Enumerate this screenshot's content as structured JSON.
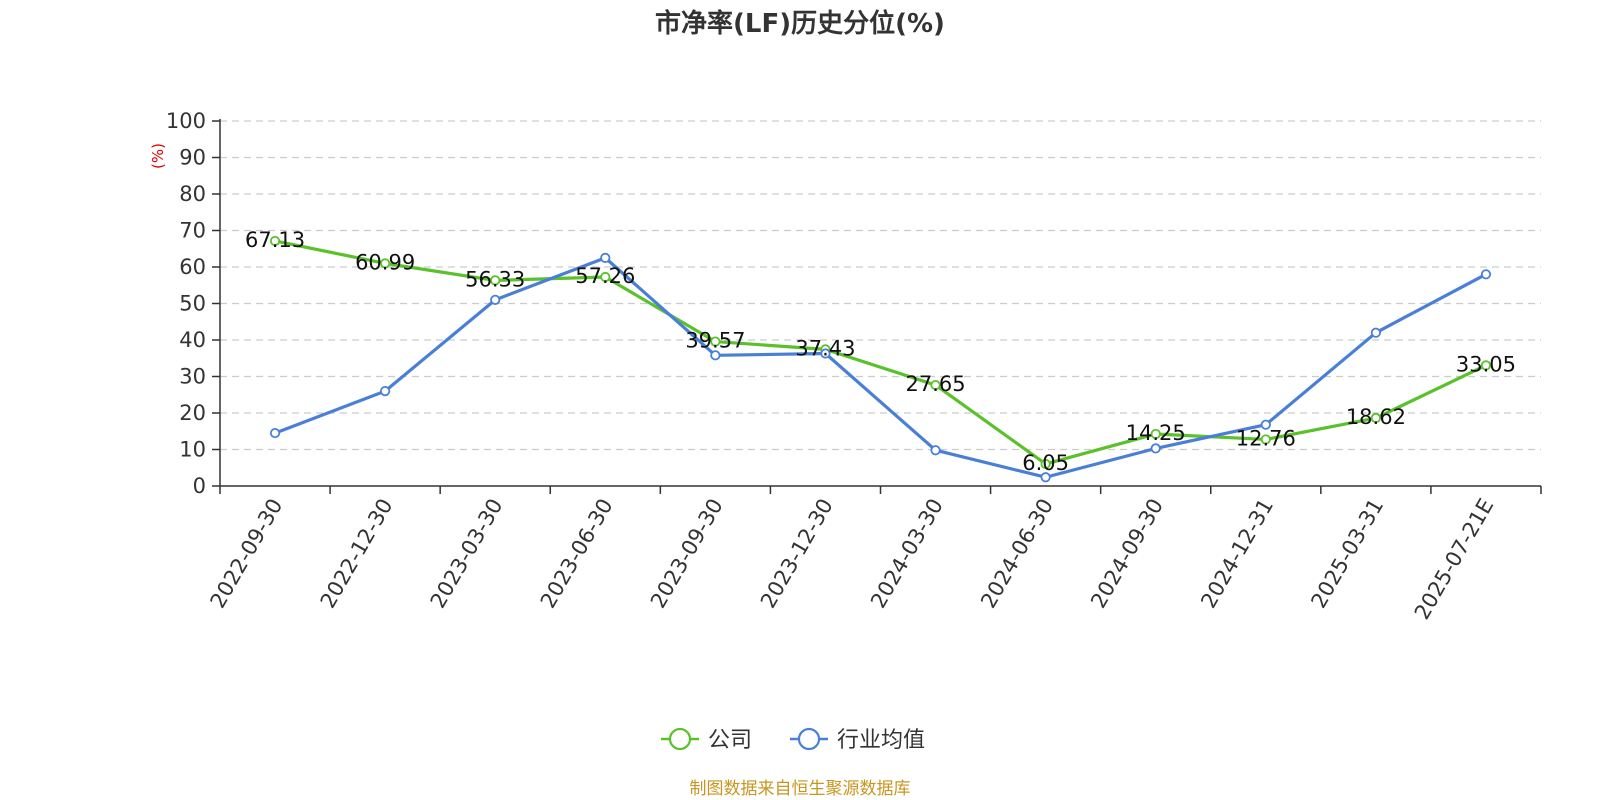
{
  "chart_data": {
    "type": "line",
    "title": "市净率(LF)历史分位(%)",
    "ylabel": "(%)",
    "xlabel": "",
    "ylim": [
      0,
      100
    ],
    "yticks": [
      0,
      10,
      20,
      30,
      40,
      50,
      60,
      70,
      80,
      90,
      100
    ],
    "categories": [
      "2022-09-30",
      "2022-12-30",
      "2023-03-30",
      "2023-06-30",
      "2023-09-30",
      "2023-12-30",
      "2024-03-30",
      "2024-06-30",
      "2024-09-30",
      "2024-12-31",
      "2025-03-31",
      "2025-07-21E"
    ],
    "grid": true,
    "legend_position": "bottom",
    "series": [
      {
        "name": "公司",
        "color": "#5ac12b",
        "values": [
          67.13,
          60.99,
          56.33,
          57.26,
          39.57,
          37.43,
          27.65,
          6.05,
          14.25,
          12.76,
          18.62,
          33.05
        ],
        "labels": [
          "67.13",
          "60.99",
          "56.33",
          "57.26",
          "39.57",
          "37.43",
          "27.65",
          "6.05",
          "14.25",
          "12.76",
          "18.62",
          "33.05"
        ]
      },
      {
        "name": "行业均值",
        "color": "#4a7fd8",
        "values": [
          14.5,
          26.0,
          51.0,
          62.5,
          35.8,
          36.3,
          9.8,
          2.4,
          10.3,
          16.8,
          42.0,
          58.0
        ]
      }
    ]
  },
  "source": "制图数据来自恒生聚源数据库",
  "colors": {
    "unit_label": "#e00000",
    "source_text": "#c8961e",
    "axis": "#333333",
    "grid": "#cccccc"
  }
}
